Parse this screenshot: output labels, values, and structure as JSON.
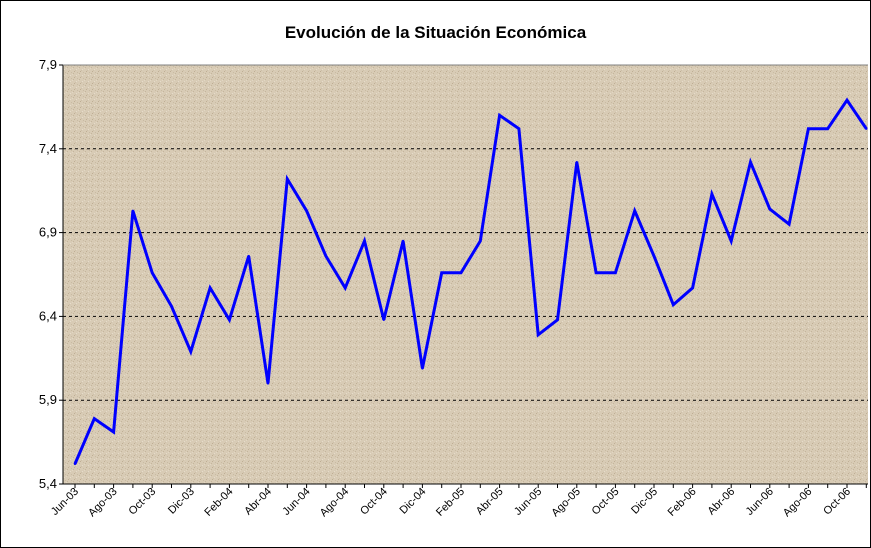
{
  "chart_data": {
    "type": "line",
    "title": "Evolución de la Situación Económica",
    "xlabel": "",
    "ylabel": "",
    "ylim": [
      5.4,
      7.9
    ],
    "yticks": [
      "5,4",
      "5,9",
      "6,4",
      "6,9",
      "7,4",
      "7,9"
    ],
    "grid": "horizontal dashed",
    "legend": "none",
    "x_tick_labels": [
      "Jun-03",
      "Ago-03",
      "Oct-03",
      "Dic-03",
      "Feb-04",
      "Abr-04",
      "Jun-04",
      "Ago-04",
      "Oct-04",
      "Dic-04",
      "Feb-05",
      "Abr-05",
      "Jun-05",
      "Ago-05",
      "Oct-05",
      "Dic-05",
      "Feb-06",
      "Abr-06",
      "Jun-06",
      "Ago-06",
      "Oct-06"
    ],
    "series": [
      {
        "color": "#0000ff",
        "values": [
          5.52,
          5.79,
          5.71,
          7.03,
          6.66,
          6.46,
          6.19,
          6.57,
          6.38,
          6.76,
          6.0,
          7.22,
          7.03,
          6.76,
          6.57,
          6.85,
          6.38,
          6.85,
          6.09,
          6.66,
          6.66,
          6.85,
          7.6,
          7.52,
          6.29,
          6.38,
          7.32,
          6.66,
          6.66,
          7.03,
          6.76,
          6.47,
          6.57,
          7.13,
          6.85,
          7.32,
          7.04,
          6.95,
          7.52,
          7.52,
          7.69,
          7.52
        ]
      }
    ]
  },
  "colors": {
    "plot_background": "#d8cbb5",
    "line": "#0000ff",
    "grid": "#000000"
  }
}
